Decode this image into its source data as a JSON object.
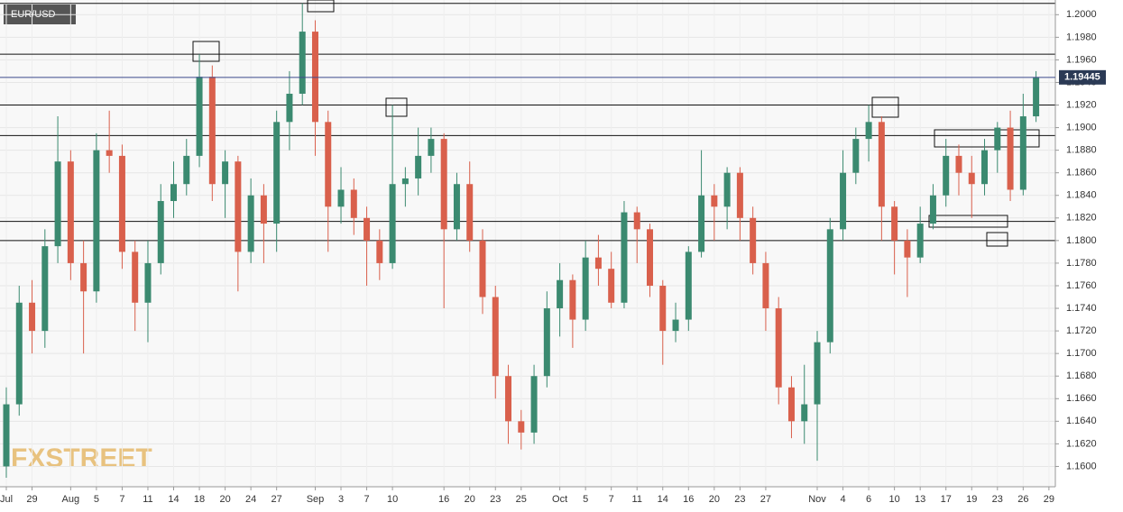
{
  "chart_data": {
    "type": "candlestick",
    "title": "EUR/USD",
    "watermark": "FXSTREET",
    "categories": [
      "Jul",
      null,
      "29",
      null,
      null,
      "Aug",
      null,
      "5",
      null,
      "7",
      null,
      "11",
      null,
      "14",
      null,
      "18",
      null,
      "20",
      null,
      "24",
      null,
      "27",
      null,
      null,
      "Sep",
      null,
      "3",
      null,
      "7",
      null,
      "10",
      null,
      null,
      null,
      "16",
      null,
      "20",
      null,
      "23",
      null,
      "25",
      null,
      null,
      "Oct",
      null,
      "5",
      null,
      "7",
      null,
      "11",
      null,
      "14",
      null,
      "16",
      null,
      "20",
      null,
      "23",
      null,
      "27",
      null,
      null,
      null,
      "Nov",
      null,
      "4",
      null,
      "6",
      null,
      "10",
      null,
      "13",
      null,
      "17",
      null,
      "19",
      null,
      "23",
      null,
      "26",
      null,
      "29"
    ],
    "open": [
      1.16,
      1.1655,
      1.1745,
      1.172,
      1.1795,
      1.187,
      1.178,
      1.1755,
      1.188,
      1.1875,
      1.179,
      1.1745,
      1.178,
      1.1835,
      1.185,
      1.1875,
      1.1945,
      1.185,
      1.187,
      1.179,
      1.184,
      1.1815,
      1.1905,
      1.193,
      1.1985,
      1.1905,
      1.183,
      1.1845,
      1.182,
      1.18,
      1.178,
      1.185,
      1.1855,
      1.1875,
      1.189,
      1.181,
      1.185,
      1.18,
      1.175,
      1.168,
      1.164,
      1.163,
      1.168,
      1.174,
      1.1765,
      1.173,
      1.1785,
      1.1775,
      1.1745,
      1.1825,
      1.181,
      1.176,
      1.172,
      1.173,
      1.179,
      1.184,
      1.183,
      1.186,
      1.182,
      1.178,
      1.174,
      1.167,
      1.164,
      1.1655,
      1.171,
      1.181,
      1.186,
      1.189,
      1.1905,
      1.183,
      1.18,
      1.1785,
      1.1815,
      1.184,
      1.1875,
      1.186,
      1.185,
      1.188,
      1.19,
      1.1845,
      1.191,
      null
    ],
    "high": [
      1.167,
      1.176,
      1.1765,
      1.181,
      1.191,
      1.188,
      1.18,
      1.1895,
      1.1915,
      1.1885,
      1.18,
      1.18,
      1.185,
      1.187,
      1.189,
      1.1965,
      1.1955,
      1.188,
      1.1875,
      1.1855,
      1.185,
      1.1915,
      1.195,
      1.201,
      1.1995,
      1.1915,
      1.1865,
      1.1855,
      1.183,
      1.181,
      1.192,
      1.1865,
      1.19,
      1.19,
      1.1895,
      1.186,
      1.187,
      1.181,
      1.176,
      1.169,
      1.165,
      1.169,
      1.1755,
      1.178,
      1.177,
      1.18,
      1.1805,
      1.179,
      1.1835,
      1.183,
      1.1815,
      1.1765,
      1.1745,
      1.1795,
      1.188,
      1.185,
      1.1865,
      1.1865,
      1.183,
      1.179,
      1.175,
      1.168,
      1.169,
      1.172,
      1.182,
      1.188,
      1.19,
      1.192,
      1.191,
      1.1835,
      1.181,
      1.183,
      1.185,
      1.189,
      1.1885,
      1.1875,
      1.189,
      1.1905,
      1.1915,
      1.193,
      1.195,
      null
    ],
    "low": [
      1.159,
      1.1645,
      1.17,
      1.1705,
      1.178,
      1.1765,
      1.17,
      1.1745,
      1.186,
      1.1775,
      1.172,
      1.171,
      1.177,
      1.182,
      1.184,
      1.1865,
      1.1835,
      1.182,
      1.1755,
      1.178,
      1.178,
      1.179,
      1.188,
      1.192,
      1.1875,
      1.179,
      1.1815,
      1.1805,
      1.176,
      1.1765,
      1.1775,
      1.183,
      1.184,
      1.186,
      1.174,
      1.18,
      1.179,
      1.1735,
      1.166,
      1.162,
      1.1615,
      1.162,
      1.167,
      1.1715,
      1.1705,
      1.172,
      1.176,
      1.174,
      1.174,
      1.178,
      1.175,
      1.169,
      1.171,
      1.172,
      1.1785,
      1.18,
      1.181,
      1.18,
      1.177,
      1.172,
      1.1655,
      1.1625,
      1.162,
      1.1605,
      1.17,
      1.18,
      1.185,
      1.187,
      1.18,
      1.177,
      1.175,
      1.178,
      1.181,
      1.183,
      1.184,
      1.182,
      1.184,
      1.186,
      1.1835,
      1.184,
      1.1905,
      null
    ],
    "close": [
      1.1655,
      1.1745,
      1.172,
      1.1795,
      1.187,
      1.178,
      1.1755,
      1.188,
      1.1875,
      1.179,
      1.1745,
      1.178,
      1.1835,
      1.185,
      1.1875,
      1.1945,
      1.185,
      1.187,
      1.179,
      1.184,
      1.1815,
      1.1905,
      1.193,
      1.1985,
      1.1905,
      1.183,
      1.1845,
      1.182,
      1.18,
      1.178,
      1.185,
      1.1855,
      1.1875,
      1.189,
      1.181,
      1.185,
      1.18,
      1.175,
      1.168,
      1.164,
      1.163,
      1.168,
      1.174,
      1.1765,
      1.173,
      1.1785,
      1.1775,
      1.1745,
      1.1825,
      1.181,
      1.176,
      1.172,
      1.173,
      1.179,
      1.184,
      1.183,
      1.186,
      1.182,
      1.178,
      1.174,
      1.167,
      1.164,
      1.1655,
      1.171,
      1.181,
      1.186,
      1.189,
      1.1905,
      1.183,
      1.18,
      1.1785,
      1.1815,
      1.184,
      1.1875,
      1.186,
      1.185,
      1.188,
      1.19,
      1.1845,
      1.191,
      1.19445,
      null
    ],
    "up_color": "#3b8a70",
    "down_color": "#d9604c",
    "ylim": [
      1.1582,
      1.2013
    ],
    "yticks": [
      {
        "value": 1.16,
        "label": "1.1600"
      },
      {
        "value": 1.162,
        "label": "1.1620"
      },
      {
        "value": 1.164,
        "label": "1.1640"
      },
      {
        "value": 1.166,
        "label": "1.1660"
      },
      {
        "value": 1.168,
        "label": "1.1680"
      },
      {
        "value": 1.17,
        "label": "1.1700"
      },
      {
        "value": 1.172,
        "label": "1.1720"
      },
      {
        "value": 1.174,
        "label": "1.1740"
      },
      {
        "value": 1.176,
        "label": "1.1760"
      },
      {
        "value": 1.178,
        "label": "1.1780"
      },
      {
        "value": 1.18,
        "label": "1.1800"
      },
      {
        "value": 1.182,
        "label": "1.1820"
      },
      {
        "value": 1.184,
        "label": "1.1840"
      },
      {
        "value": 1.186,
        "label": "1.1860"
      },
      {
        "value": 1.188,
        "label": "1.1880"
      },
      {
        "value": 1.19,
        "label": "1.1900"
      },
      {
        "value": 1.192,
        "label": "1.1920"
      },
      {
        "value": 1.194,
        "label": "1.1940"
      },
      {
        "value": 1.196,
        "label": "1.1960"
      },
      {
        "value": 1.198,
        "label": "1.1980"
      },
      {
        "value": 1.2,
        "label": "1.2000"
      }
    ],
    "grid": true,
    "levels": [
      1.201,
      1.1965,
      1.192,
      1.1893,
      1.1817,
      1.18
    ],
    "level_color": "#111111",
    "last_color": "#3c4a8c"
  }
}
